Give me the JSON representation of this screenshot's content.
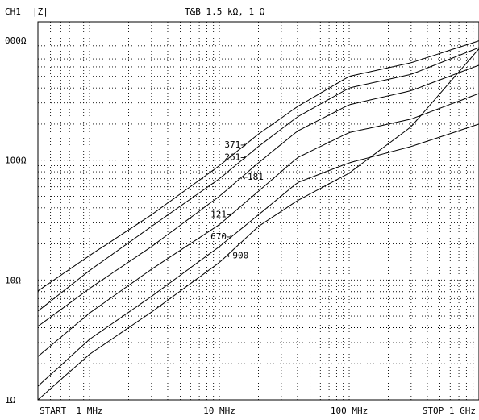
{
  "header": {
    "channel": "CH1",
    "measurement": "|Z|",
    "title": "T&B  1.5 kΩ, 1 Ω"
  },
  "chart_data": {
    "type": "line",
    "x_scale": "log",
    "y_scale": "log",
    "xlim": [
      400000,
      1000000000
    ],
    "ylim": [
      1,
      1000
    ],
    "y_tick_labels": [
      {
        "value": 1000,
        "text": "000Ω"
      },
      {
        "value": 100,
        "text": "100Ω"
      },
      {
        "value": 10,
        "text": "10Ω"
      },
      {
        "value": 1,
        "text": "1Ω"
      }
    ],
    "x_tick_labels": [
      {
        "value": 400000,
        "text": "START"
      },
      {
        "value": 1000000,
        "text": "1 MHz"
      },
      {
        "value": 10000000,
        "text": "10 MHz"
      },
      {
        "value": 100000000,
        "text": "100 MHz"
      },
      {
        "value": 1000000000,
        "text": "STOP  1 GHz"
      }
    ],
    "grid": true,
    "series": [
      {
        "name": "371",
        "x": [
          400000,
          1000000,
          3000000,
          10000000,
          20000000,
          40000000,
          100000000,
          300000000,
          1000000000
        ],
        "y": [
          8.1,
          16,
          35,
          90,
          165,
          280,
          500,
          650,
          990
        ]
      },
      {
        "name": "261",
        "x": [
          400000,
          1000000,
          3000000,
          10000000,
          20000000,
          40000000,
          100000000,
          300000000,
          1000000000
        ],
        "y": [
          5.5,
          12,
          28,
          70,
          130,
          230,
          400,
          520,
          870
        ]
      },
      {
        "name": "181",
        "x": [
          400000,
          1000000,
          3000000,
          10000000,
          20000000,
          40000000,
          100000000,
          300000000,
          1000000000
        ],
        "y": [
          4.1,
          8.5,
          19,
          50,
          95,
          175,
          290,
          380,
          620
        ]
      },
      {
        "name": "121",
        "x": [
          400000,
          1000000,
          3000000,
          10000000,
          20000000,
          40000000,
          100000000,
          300000000,
          1000000000
        ],
        "y": [
          2.3,
          5.3,
          12.3,
          29,
          55,
          105,
          170,
          220,
          360
        ]
      },
      {
        "name": "670",
        "x": [
          400000,
          1000000,
          3000000,
          10000000,
          20000000,
          40000000,
          100000000,
          300000000,
          1000000000
        ],
        "y": [
          1.3,
          3.2,
          7.3,
          19,
          35,
          65,
          95,
          130,
          200
        ]
      },
      {
        "name": "900",
        "x": [
          400000,
          1000000,
          3000000,
          10000000,
          20000000,
          40000000,
          100000000,
          300000000,
          1000000000
        ],
        "y": [
          1.0,
          2.4,
          5.4,
          14,
          28,
          46,
          78,
          190,
          850
        ]
      }
    ],
    "annotations": [
      {
        "text": "371→",
        "series": "371",
        "x": 16000000
      },
      {
        "text": "261→",
        "series": "261",
        "x": 16000000
      },
      {
        "text": "←181",
        "series": "181",
        "x": 15000000
      },
      {
        "text": "121→",
        "series": "121",
        "x": 12500000
      },
      {
        "text": "670→",
        "series": "670",
        "x": 12500000
      },
      {
        "text": "←900",
        "series": "900",
        "x": 11500000
      }
    ]
  }
}
